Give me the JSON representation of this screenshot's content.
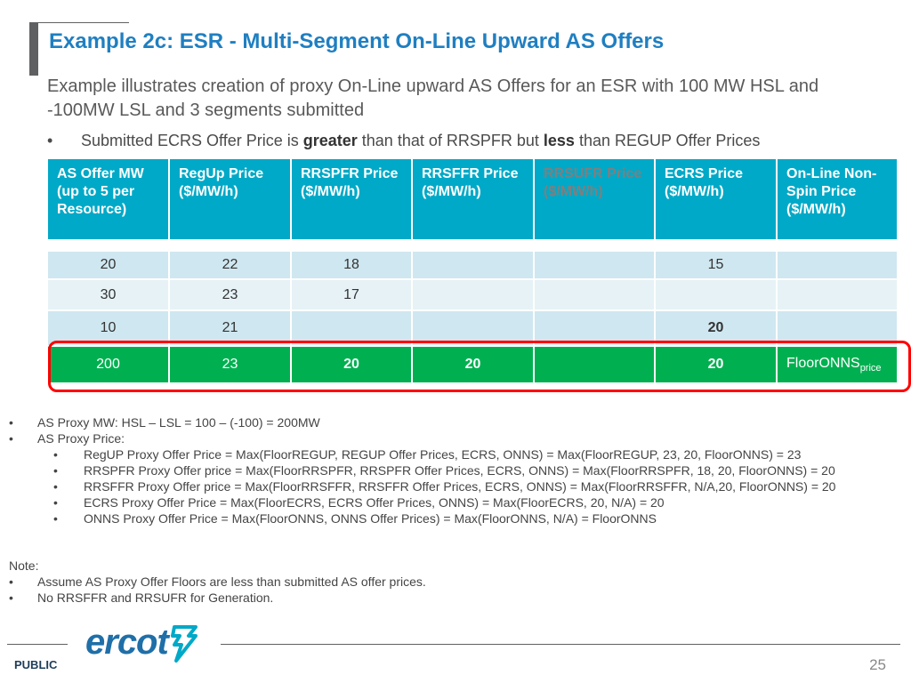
{
  "title": "Example 2c: ESR - Multi-Segment On-Line Upward AS Offers",
  "subtitle": "Example illustrates creation of proxy On-Line upward AS Offers for an ESR with 100 MW HSL and -100MW LSL and 3 segments submitted",
  "bullet": {
    "part1": "Submitted ECRS Offer Price is ",
    "bold1": "greater",
    "part2": " than that of RRSPFR but ",
    "bold2": "less",
    "part3": " than REGUP Offer Prices"
  },
  "table": {
    "headers": [
      "AS Offer MW (up to 5 per Resource)",
      "RegUp Price ($/MW/h)",
      "RRSPFR Price ($/MW/h)",
      "RRSFFR Price ($/MW/h)",
      "RRSUFR Price ($/MW/h)",
      "ECRS Price ($/MW/h)",
      "On-Line Non-Spin Price ($/MW/h)"
    ],
    "rows": [
      [
        "20",
        "22",
        "18",
        "",
        "",
        "15",
        ""
      ],
      [
        "30",
        "23",
        "17",
        "",
        "",
        "",
        ""
      ],
      [
        "10",
        "21",
        "",
        "",
        "",
        "20",
        ""
      ],
      [
        "200",
        "23",
        "20",
        "20",
        "",
        "20",
        "FloorONNS"
      ]
    ],
    "last_sub": "price"
  },
  "calc": {
    "b1": "AS Proxy MW: HSL – LSL = 100 – (-100) = 200MW",
    "b2": "AS Proxy Price:",
    "items": [
      "RegUP Proxy Offer Price = Max(FloorREGUP, REGUP Offer Prices, ECRS, ONNS) = Max(FloorREGUP, 23, 20, FloorONNS) = 23",
      "RRSPFR Proxy Offer price = Max(FloorRRSPFR, RRSPFR Offer Prices, ECRS, ONNS) = Max(FloorRRSPFR, 18, 20, FloorONNS) = 20",
      "RRSFFR Proxy Offer price = Max(FloorRRSFFR, RRSFFR Offer Prices, ECRS, ONNS) = Max(FloorRRSFFR, N/A,20, FloorONNS) = 20",
      "ECRS Proxy Offer Price = Max(FloorECRS, ECRS Offer Prices, ONNS) = Max(FloorECRS, 20, N/A) = 20",
      "ONNS Proxy Offer Price = Max(FloorONNS, ONNS Offer Prices) = Max(FloorONNS, N/A) = FloorONNS"
    ]
  },
  "note": {
    "label": "Note:",
    "items": [
      "Assume AS Proxy Offer Floors are less than submitted AS offer prices.",
      "No RRSFFR and RRSUFR for Generation."
    ]
  },
  "footer": {
    "logo": "ercot",
    "classification": "PUBLIC",
    "page": "25"
  },
  "colors": {
    "title": "#1f7fc1",
    "header_bg": "#00a9c7",
    "highlight_row": "#00b050",
    "highlight_border": "#ff0000"
  }
}
